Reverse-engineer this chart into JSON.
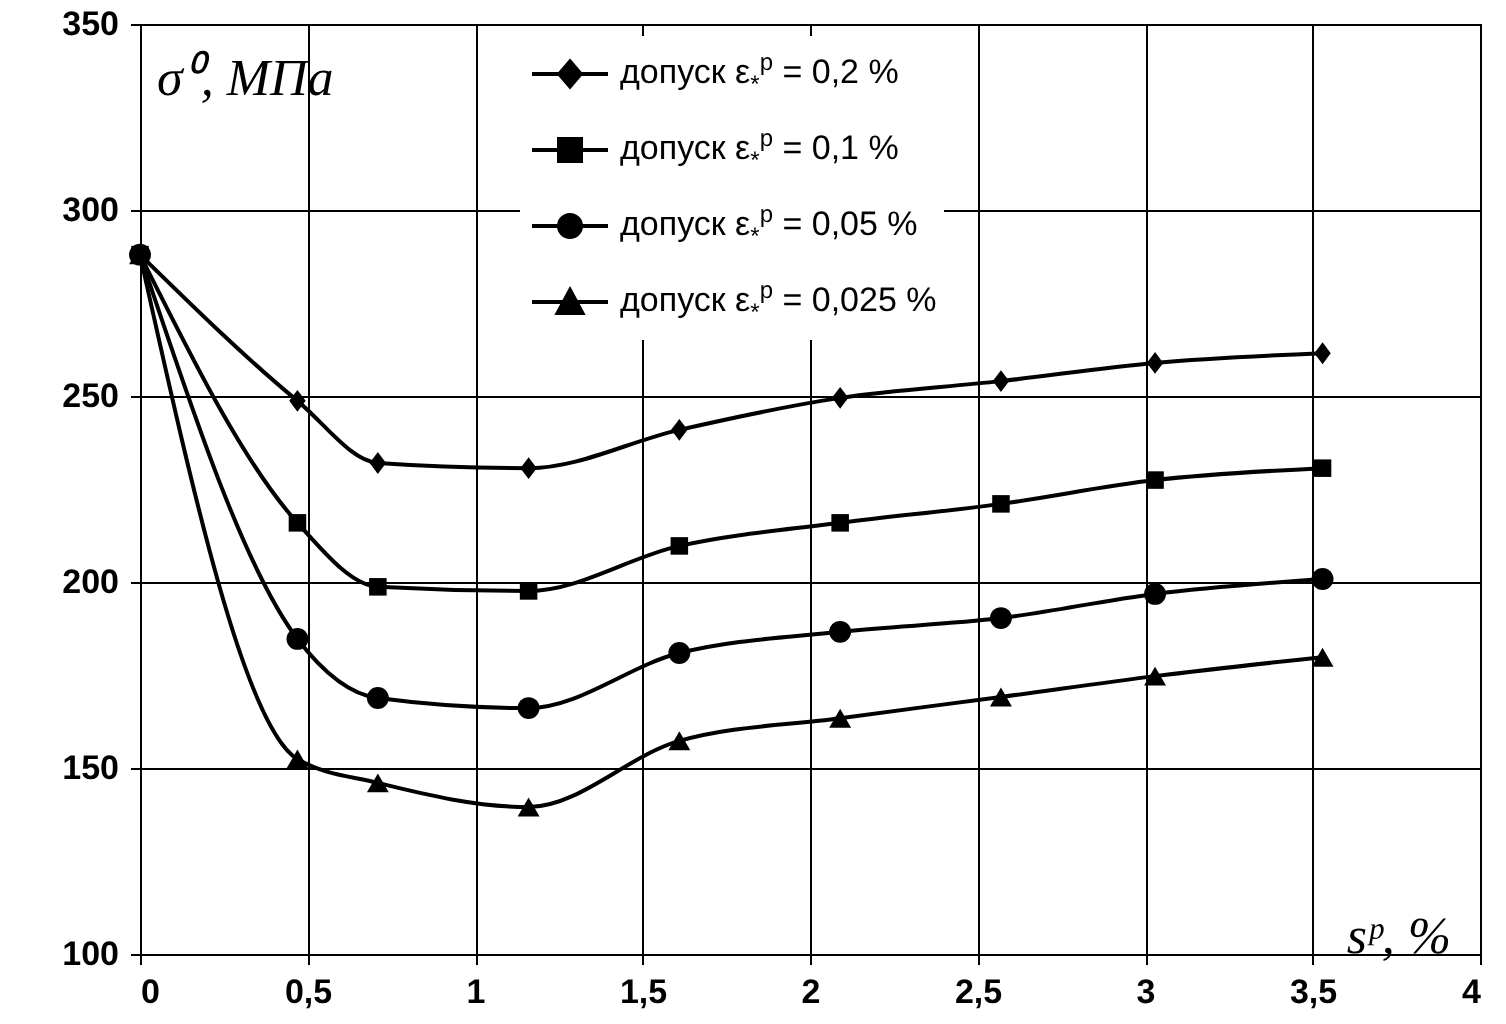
{
  "chart_data": {
    "type": "line",
    "xlabel": "sᵖ, %",
    "ylabel": "σ⁰, МПа",
    "x": [
      0,
      0.47,
      0.71,
      1.16,
      1.61,
      2.09,
      2.57,
      3.03,
      3.53
    ],
    "series": [
      {
        "name": "допуск ε$_{*}$$^{p}$ = 0,2 %",
        "color": "#000000",
        "marker": "diamond",
        "values": [
          288,
          248.7,
          232,
          230.6,
          240.9,
          249.5,
          254,
          258.9,
          261.5
        ]
      },
      {
        "name": "допуск ε$_{*}$$^{p}$ = 0,1 %",
        "color": "#000000",
        "marker": "square",
        "values": [
          288,
          215.9,
          198.7,
          197.6,
          209.7,
          215.9,
          221,
          227.4,
          230.6
        ]
      },
      {
        "name": "допуск ε$_{*}$$^{p}$ = 0,05 %",
        "color": "#000000",
        "marker": "circle",
        "values": [
          288,
          184.7,
          168.8,
          166.1,
          180.9,
          186.6,
          190.3,
          196.8,
          200.8
        ]
      },
      {
        "name": "допуск ε$_{*}$$^{p}$ = 0,025 %",
        "color": "#000000",
        "marker": "triangle",
        "values": [
          288,
          152.4,
          146,
          139.5,
          157.3,
          163.4,
          169.1,
          174.7,
          179.8
        ]
      }
    ],
    "xlim": [
      0,
      4
    ],
    "xticks": [
      0,
      {
        "value": 0.5,
        "label": "0,5"
      },
      1,
      {
        "value": 1.5,
        "label": "1,5"
      },
      2,
      {
        "value": 2.5,
        "label": "2,5"
      },
      3,
      {
        "value": 3.5,
        "label": "3,5"
      },
      4
    ],
    "ylim": [
      100,
      350
    ],
    "yticks": [
      100,
      150,
      200,
      250,
      300,
      350
    ],
    "grid": true,
    "legend": "top",
    "line_style": "solid"
  }
}
